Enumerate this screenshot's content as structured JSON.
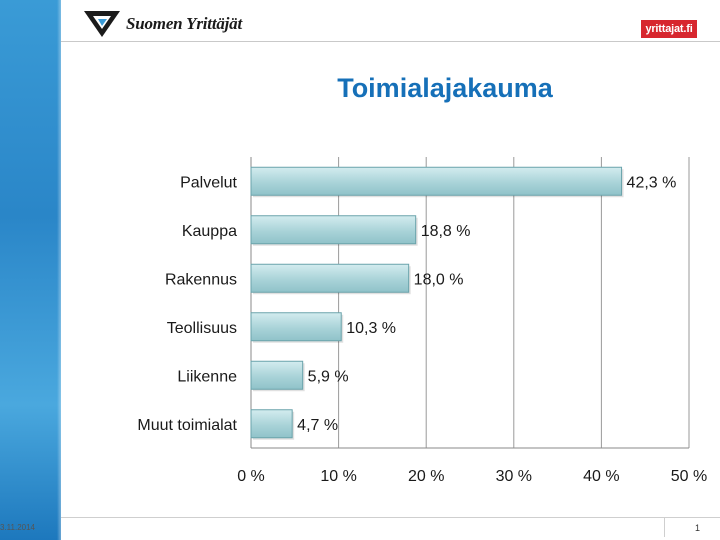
{
  "header": {
    "logo_text": "Suomen Yrittäjät",
    "badge_text": "yrittajat.fi",
    "logo_icon": "triangle-logo-icon"
  },
  "slide": {
    "title": "Toimialajakauma"
  },
  "colors": {
    "bar_fill": "#a9d3d8",
    "bar_stroke": "#6aa3ab",
    "title": "#1670b8",
    "side_band": "#2a86c8",
    "badge": "#d7262e"
  },
  "chart_data": {
    "type": "bar",
    "orientation": "horizontal",
    "categories": [
      "Palvelut",
      "Kauppa",
      "Rakennus",
      "Teollisuus",
      "Liikenne",
      "Muut toimialat"
    ],
    "values": [
      42.3,
      18.8,
      18.0,
      10.3,
      5.9,
      4.7
    ],
    "value_labels": [
      "42,3 %",
      "18,8 %",
      "18,0 %",
      "10,3 %",
      "5,9 %",
      "4,7 %"
    ],
    "xlim": [
      0,
      50
    ],
    "x_ticks": [
      0,
      10,
      20,
      30,
      40,
      50
    ],
    "x_tick_labels": [
      "0 %",
      "10 %",
      "20 %",
      "30 %",
      "40 %",
      "50 %"
    ],
    "grid": true,
    "legend": "none"
  },
  "footer": {
    "date": "3.11.2014",
    "page_number": "1"
  }
}
